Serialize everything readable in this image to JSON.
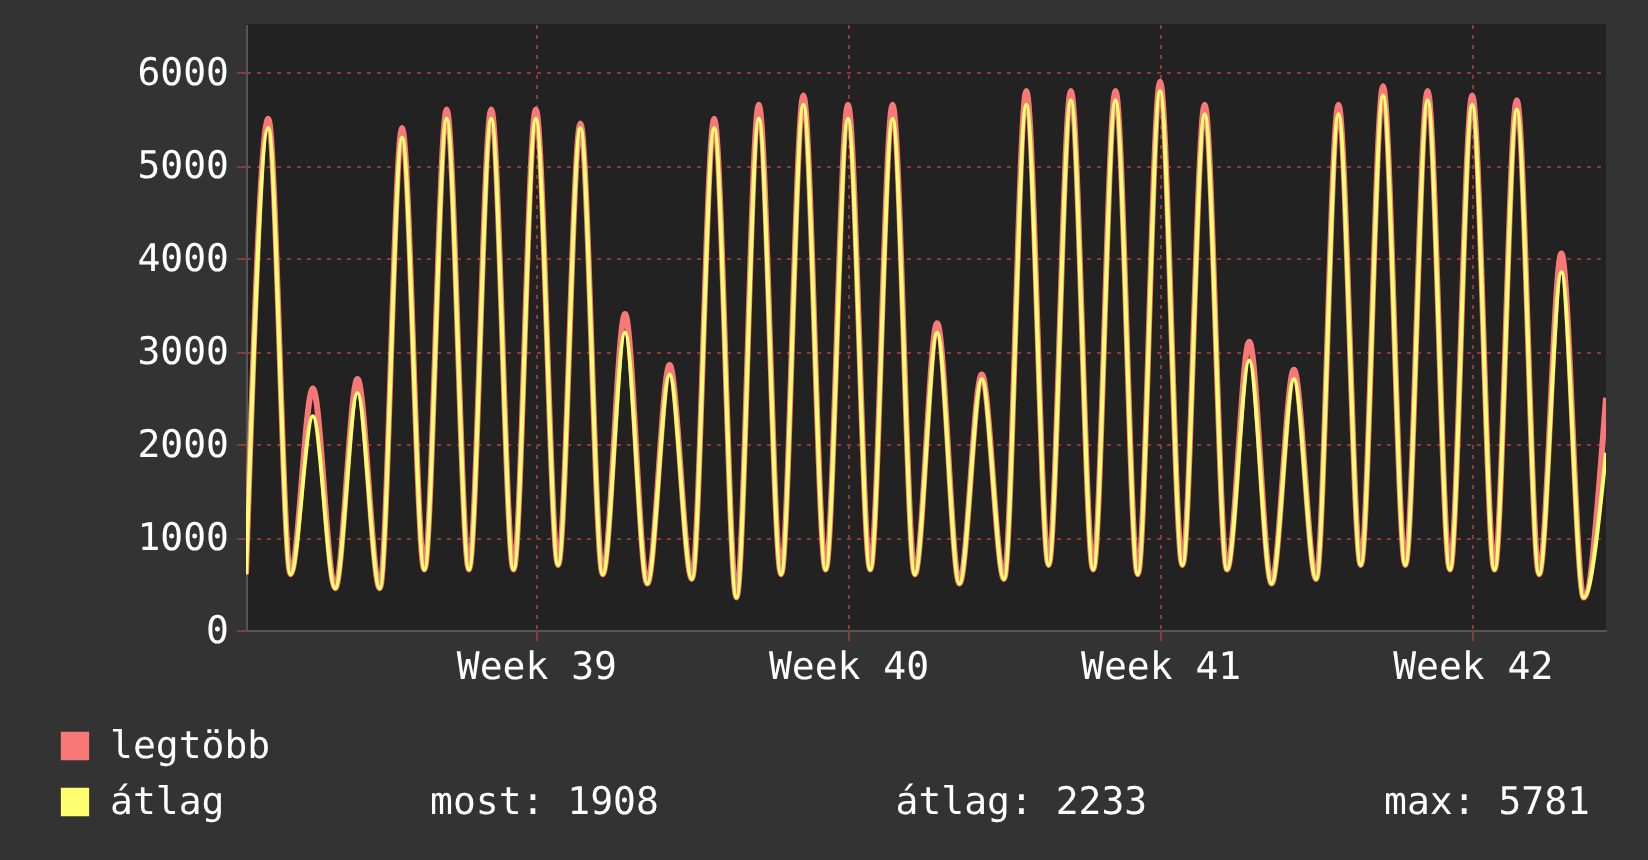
{
  "chart_data": {
    "type": "line",
    "categories": [
      null,
      null,
      null,
      null,
      null,
      null,
      null,
      null,
      null,
      null,
      null,
      null,
      null,
      "Week 39",
      null,
      null,
      null,
      null,
      null,
      null,
      null,
      null,
      null,
      null,
      null,
      null,
      null,
      "Week 40",
      null,
      null,
      null,
      null,
      null,
      null,
      null,
      null,
      null,
      null,
      null,
      null,
      null,
      "Week 41",
      null,
      null,
      null,
      null,
      null,
      null,
      null,
      null,
      null,
      null,
      null,
      null,
      null,
      "Week 42",
      null,
      null,
      null,
      null,
      null,
      null
    ],
    "series": [
      {
        "name": "legtöbb",
        "color": "#f87878",
        "values": [
          600,
          5500,
          600,
          2600,
          450,
          2700,
          450,
          5400,
          650,
          5600,
          650,
          5600,
          650,
          5600,
          700,
          5450,
          600,
          3400,
          500,
          2850,
          550,
          5500,
          350,
          5650,
          600,
          5750,
          650,
          5650,
          650,
          5650,
          600,
          3300,
          500,
          2750,
          550,
          5800,
          700,
          5800,
          650,
          5800,
          600,
          5900,
          700,
          5650,
          650,
          3100,
          500,
          2800,
          550,
          5650,
          700,
          5850,
          700,
          5800,
          650,
          5750,
          650,
          5700,
          600,
          4050,
          350,
          2500
        ]
      },
      {
        "name": "átlag",
        "color": "#ffff70",
        "values": [
          600,
          5400,
          600,
          2300,
          450,
          2550,
          450,
          5300,
          650,
          5500,
          650,
          5500,
          650,
          5500,
          700,
          5400,
          600,
          3200,
          500,
          2750,
          550,
          5400,
          350,
          5500,
          600,
          5650,
          650,
          5500,
          650,
          5500,
          600,
          3200,
          500,
          2700,
          550,
          5650,
          700,
          5700,
          650,
          5700,
          600,
          5800,
          700,
          5550,
          650,
          2900,
          500,
          2700,
          550,
          5550,
          700,
          5750,
          700,
          5700,
          650,
          5650,
          650,
          5600,
          600,
          3850,
          350,
          1908
        ]
      }
    ],
    "ylim": [
      0,
      6520
    ],
    "yticks": [
      0,
      1000,
      2000,
      3000,
      4000,
      5000,
      6000
    ],
    "grid": true,
    "legend": "bottom left",
    "annotations": [
      "most: 1908",
      "átlag: 2233",
      "max: 5781"
    ]
  }
}
